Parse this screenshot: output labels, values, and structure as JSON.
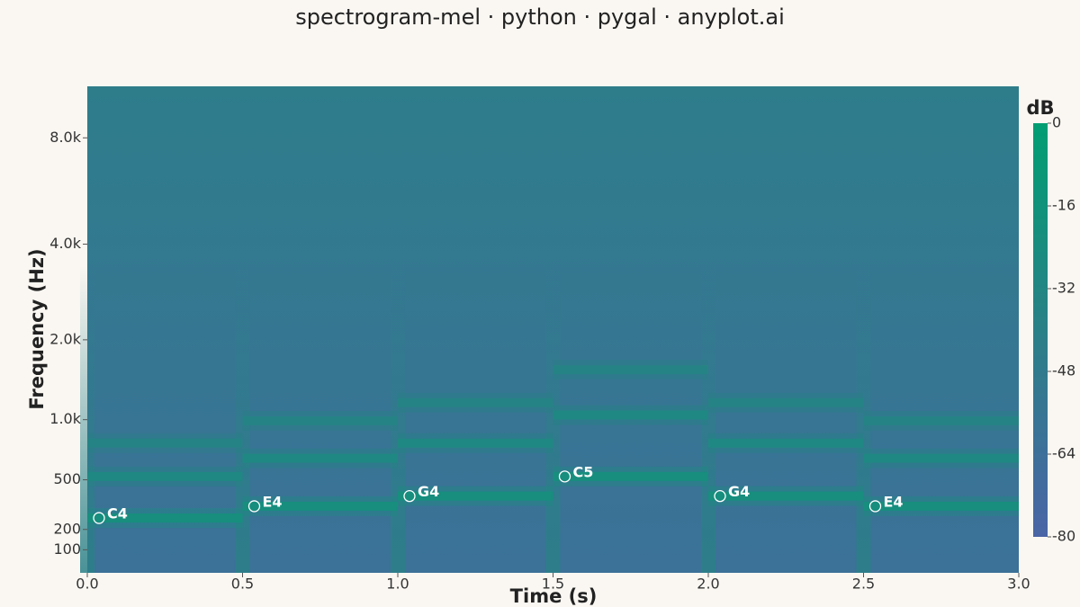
{
  "chart_data": {
    "type": "spectrogram",
    "title": "spectrogram-mel · python · pygal · anyplot.ai",
    "x_label": "Time (s)",
    "y_label": "Frequency (Hz)",
    "yscale": "mel",
    "xlim": [
      0,
      3.0
    ],
    "ylim": [
      0,
      11025
    ],
    "xticks": [
      {
        "value": 0,
        "label": "0.0"
      },
      0.5,
      {
        "value": 1,
        "label": "1.0"
      },
      1.5,
      {
        "value": 2,
        "label": "2.0"
      },
      2.5,
      {
        "value": 3,
        "label": "3.0"
      }
    ],
    "yticks": [
      100,
      200,
      500,
      {
        "value": 1000,
        "label": "1.0k"
      },
      {
        "value": 2000,
        "label": "2.0k"
      },
      {
        "value": 4000,
        "label": "4.0k"
      },
      {
        "value": 8000,
        "label": "8.0k"
      }
    ],
    "notes": [
      {
        "name": "C4",
        "start": 0,
        "end": 0.5,
        "frequency": 261.6
      },
      {
        "name": "E4",
        "start": 0.5,
        "end": 1.0,
        "frequency": 329.6
      },
      {
        "name": "G4",
        "start": 1.0,
        "end": 1.5,
        "frequency": 392.0
      },
      {
        "name": "C5",
        "start": 1.5,
        "end": 2.0,
        "frequency": 523.3
      },
      {
        "name": "G4",
        "start": 2.0,
        "end": 2.5,
        "frequency": 392.0
      },
      {
        "name": "E4",
        "start": 2.5,
        "end": 3.0,
        "frequency": 329.6
      }
    ],
    "harmonics": [
      1,
      2,
      3
    ],
    "harmonic_db": [
      -22,
      -30,
      -36
    ],
    "onset_db": -40,
    "background_db": [
      -62,
      -45
    ],
    "colorbar": {
      "label": "dB",
      "lim": [
        -80,
        0
      ],
      "ticks": [
        0,
        -16,
        -32,
        -48,
        -64,
        -80
      ],
      "colors": [
        "#4a65a6",
        "#2a8087",
        "#009e73"
      ]
    }
  }
}
